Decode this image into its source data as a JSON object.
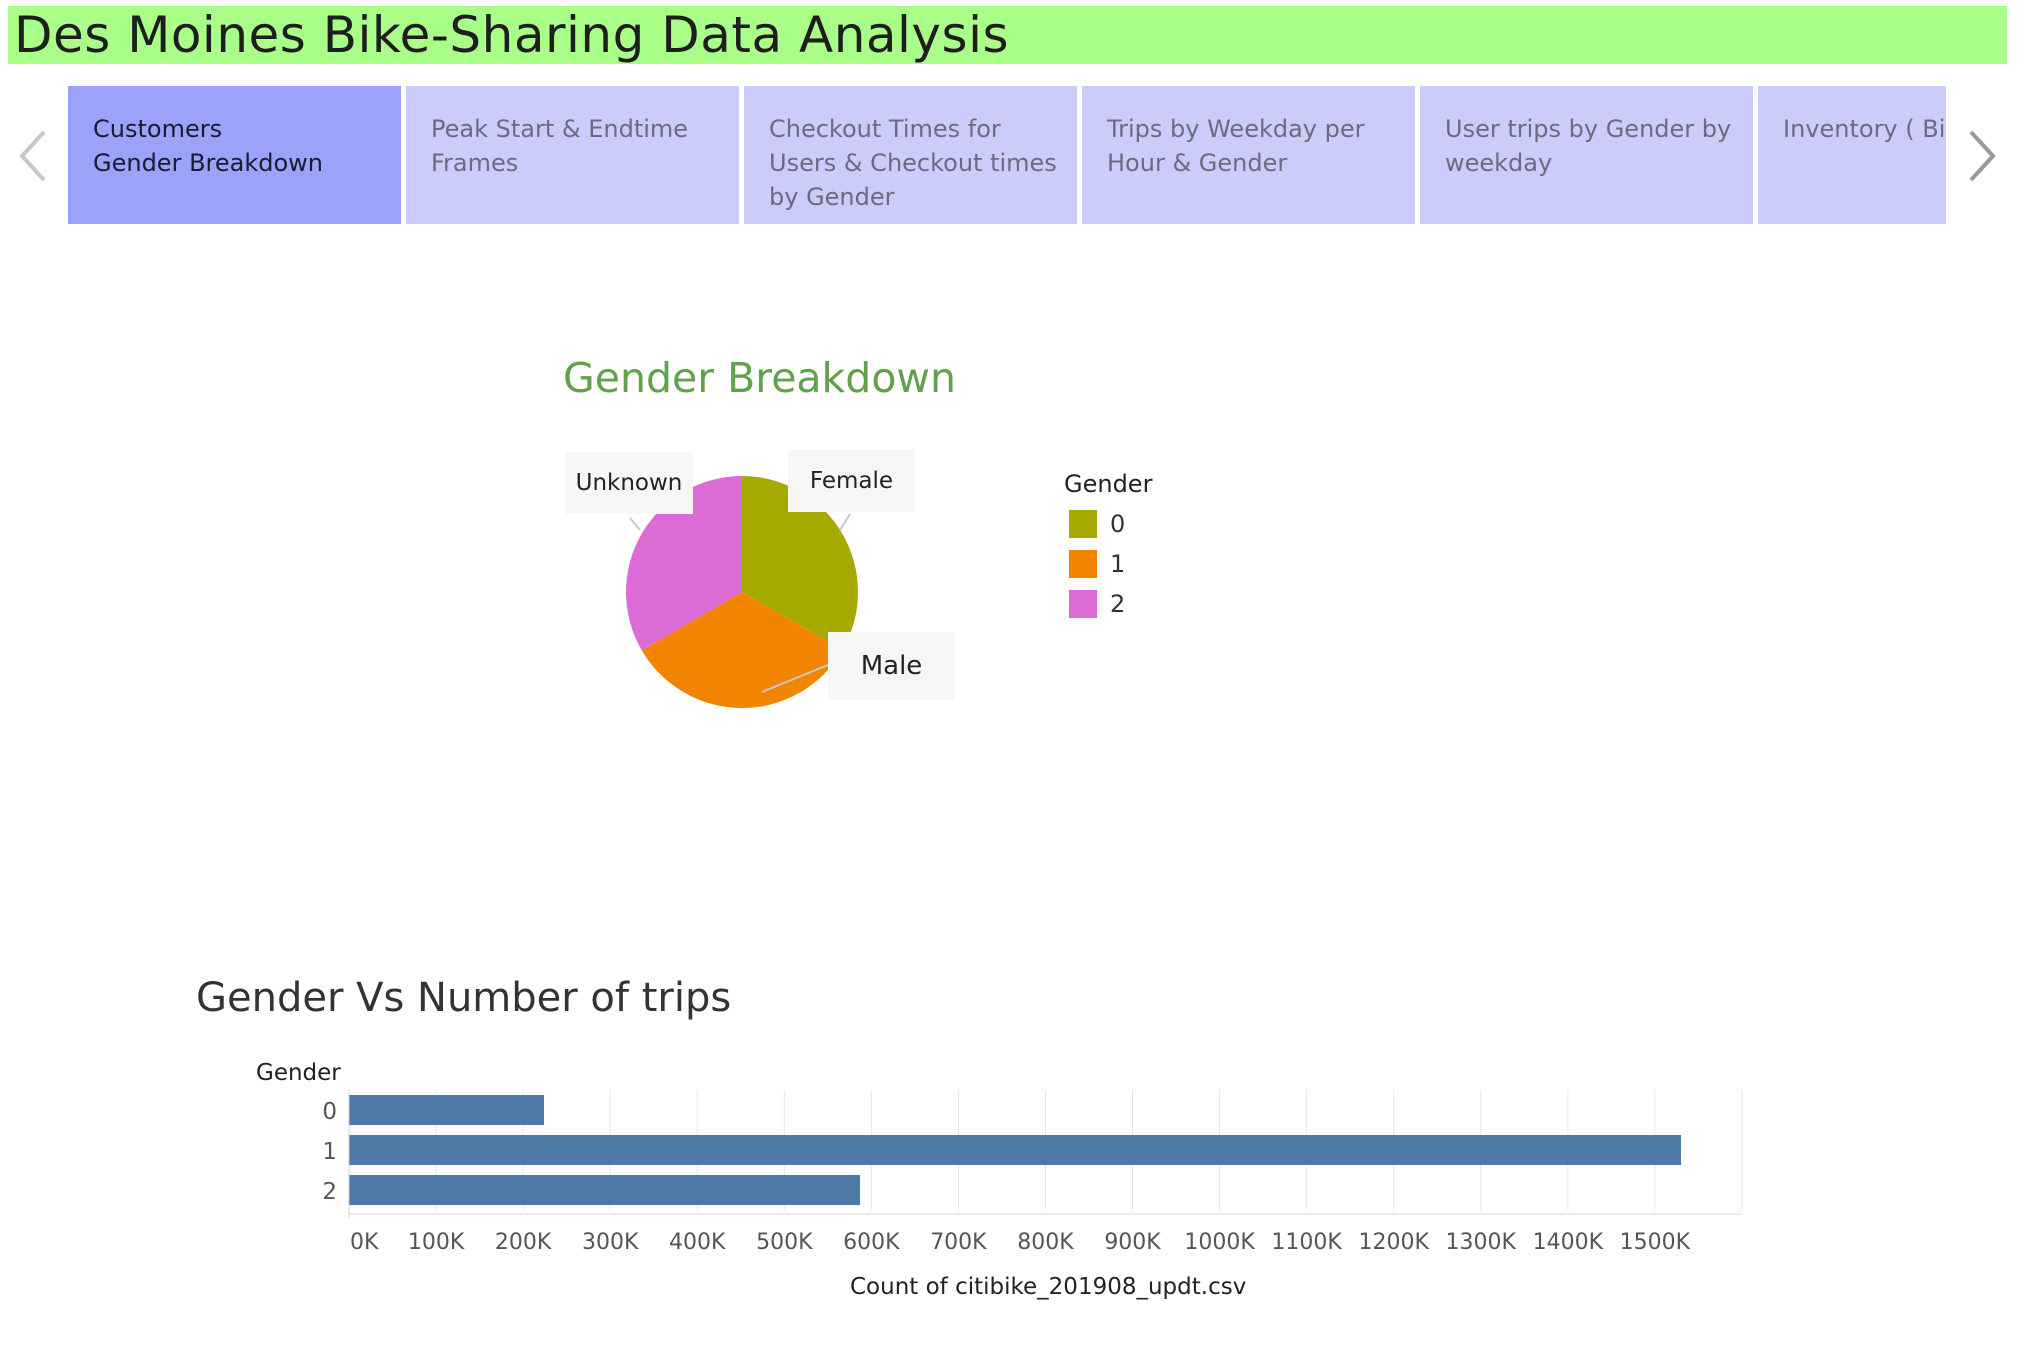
{
  "header": {
    "title": "Des Moines Bike-Sharing Data Analysis"
  },
  "nav": {
    "prev_icon": "chevron-left-icon",
    "next_icon": "chevron-right-icon",
    "tabs": [
      {
        "lines": [
          "Customers",
          "Gender Breakdown"
        ],
        "active": true
      },
      {
        "lines": [
          "Peak Start & Endtime",
          "Frames"
        ],
        "active": false
      },
      {
        "lines": [
          "Checkout Times for",
          "Users & Checkout times",
          "by Gender"
        ],
        "active": false
      },
      {
        "lines": [
          "Trips by Weekday per",
          "Hour &  Gender"
        ],
        "active": false
      },
      {
        "lines": [
          "User trips by Gender by",
          "weekday"
        ],
        "active": false
      },
      {
        "lines": [
          "Inventory ( Bike"
        ],
        "active": false
      }
    ]
  },
  "colors": {
    "title_bar": "#aaff88",
    "tab_active": "#9ca2f8",
    "tab_inactive": "#ccccfb",
    "gender_0": "#a5aa00",
    "gender_1": "#f28500",
    "gender_2": "#dd6bd6",
    "bar": "#4e79a7"
  },
  "chart_data": [
    {
      "type": "pie",
      "title": "Gender Breakdown",
      "legend_title": "Gender",
      "legend_position": "right",
      "slices": [
        {
          "legend": "0",
          "label": "Female",
          "share": 0.333,
          "color": "#a5aa00"
        },
        {
          "legend": "1",
          "label": "Male",
          "share": 0.333,
          "color": "#f28500"
        },
        {
          "legend": "2",
          "label": "Unknown",
          "share": 0.334,
          "color": "#dd6bd6"
        }
      ]
    },
    {
      "type": "bar",
      "orientation": "horizontal",
      "title": "Gender Vs Number of trips",
      "ylabel": "Gender",
      "xlabel": "Count of citibike_201908_updt.csv",
      "categories": [
        "0",
        "1",
        "2"
      ],
      "values": [
        224000,
        1530000,
        587000
      ],
      "xlim": [
        0,
        1600000
      ],
      "xticks": [
        0,
        100000,
        200000,
        300000,
        400000,
        500000,
        600000,
        700000,
        800000,
        900000,
        1000000,
        1100000,
        1200000,
        1300000,
        1400000,
        1500000
      ],
      "xtick_labels": [
        "0K",
        "100K",
        "200K",
        "300K",
        "400K",
        "500K",
        "600K",
        "700K",
        "800K",
        "900K",
        "1000K",
        "1100K",
        "1200K",
        "1300K",
        "1400K",
        "1500K"
      ],
      "grid": true,
      "color": "#4e79a7"
    }
  ]
}
